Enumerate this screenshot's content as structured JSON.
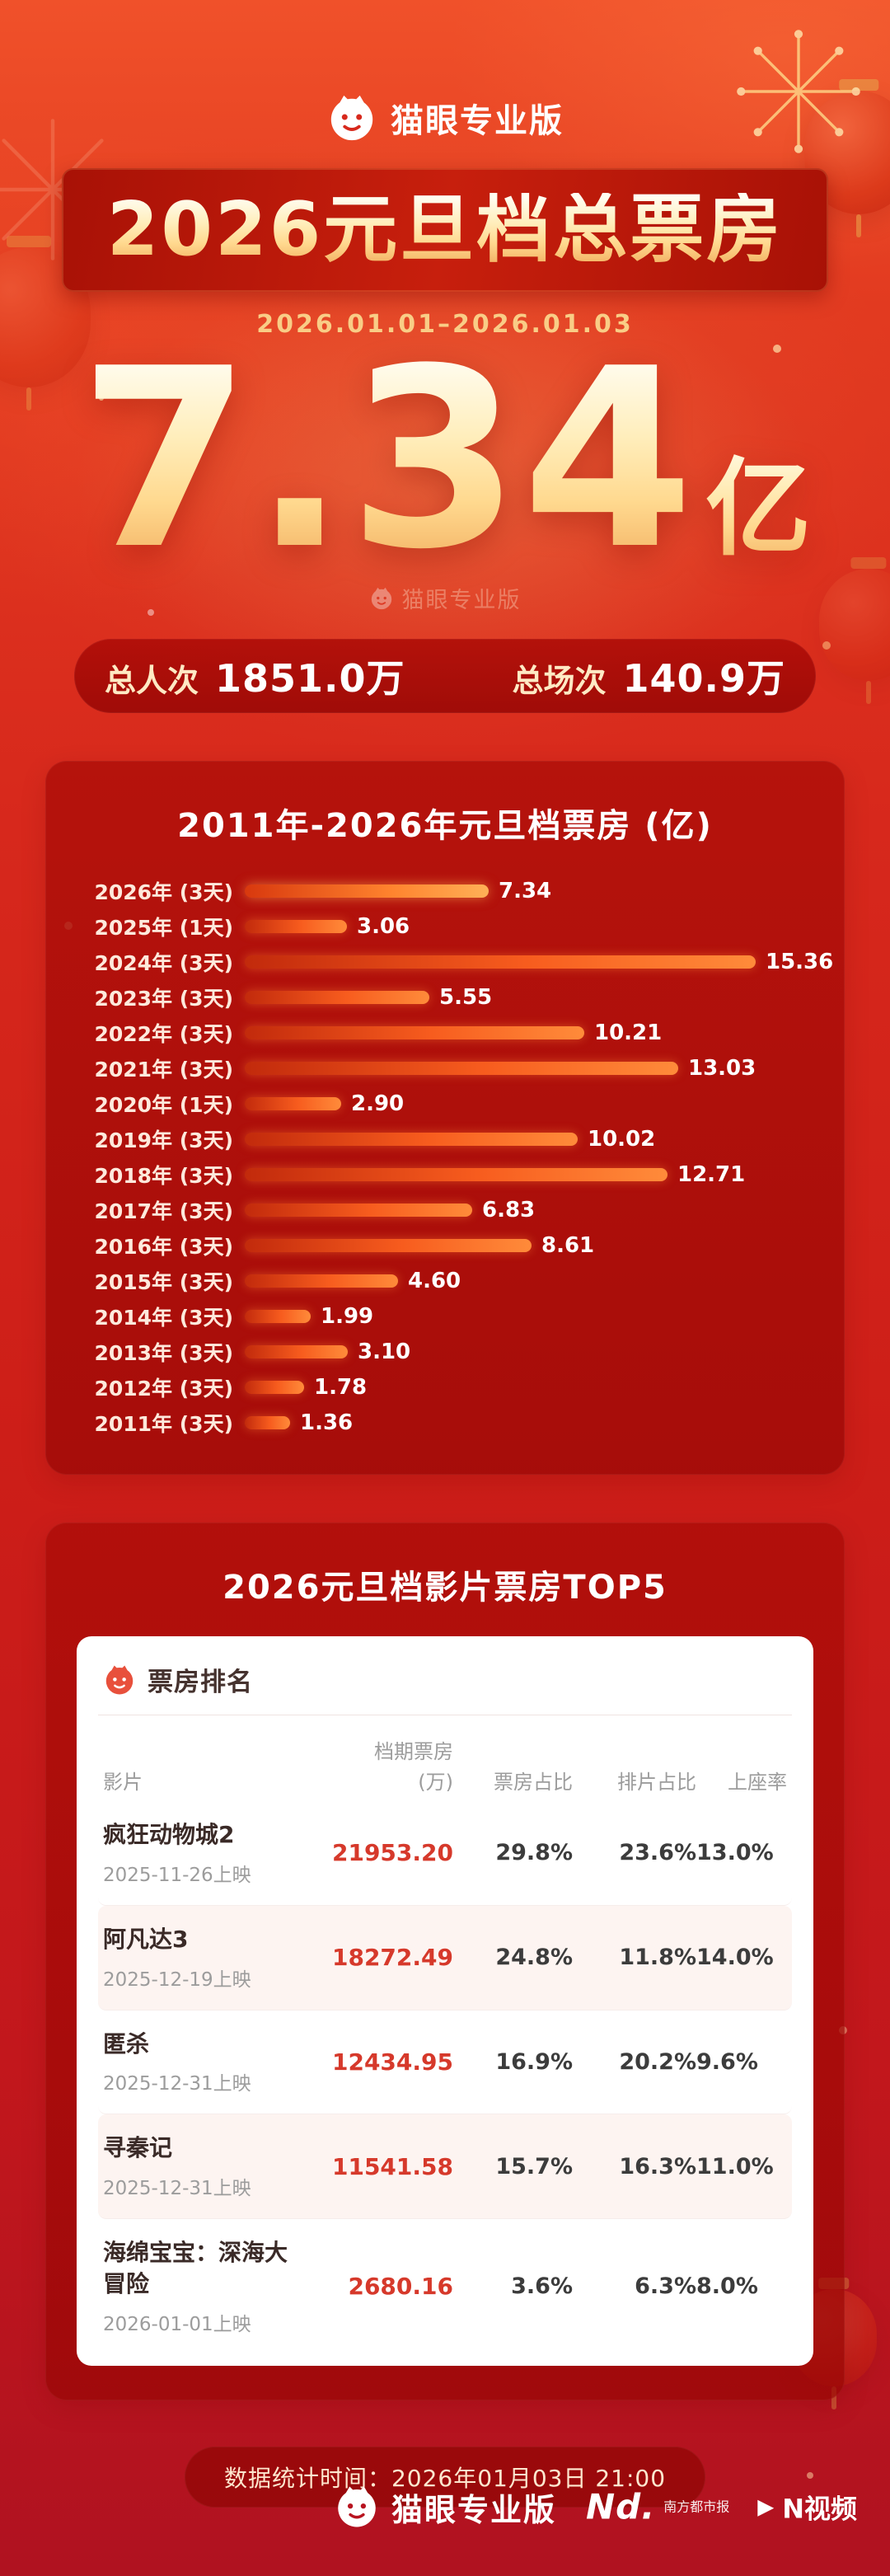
{
  "brand": {
    "name": "猫眼专业版"
  },
  "hero": {
    "title": "2026元旦档总票房",
    "date_range": "2026.01.01–2026.01.03",
    "total": "7.34",
    "unit": "亿",
    "watermark": "猫眼专业版",
    "stats": [
      {
        "label": "总人次",
        "value": "1851.0万"
      },
      {
        "label": "总场次",
        "value": "140.9万"
      }
    ]
  },
  "chart_data": [
    {
      "type": "bar",
      "orientation": "horizontal",
      "title": "2011年-2026年元旦档票房 (亿)",
      "categories": [
        "2026年 (3天)",
        "2025年 (1天)",
        "2024年 (3天)",
        "2023年 (3天)",
        "2022年 (3天)",
        "2021年 (3天)",
        "2020年 (1天)",
        "2019年 (3天)",
        "2018年 (3天)",
        "2017年 (3天)",
        "2016年 (3天)",
        "2015年 (3天)",
        "2014年 (3天)",
        "2013年 (3天)",
        "2012年 (3天)",
        "2011年 (3天)"
      ],
      "values": [
        7.34,
        3.06,
        15.36,
        5.55,
        10.21,
        13.03,
        2.9,
        10.02,
        12.71,
        6.83,
        8.61,
        4.6,
        1.99,
        3.1,
        1.78,
        1.36
      ],
      "xlim": [
        0,
        15.36
      ],
      "value_labels": true,
      "bar_color": "#ff7a33",
      "highlight_first": true,
      "grid": false,
      "legend": "none"
    },
    {
      "type": "table",
      "title": "2026元旦档影片票房TOP5",
      "corner_label": "票房排名",
      "columns": [
        {
          "label": "影片"
        },
        {
          "label": "档期票房",
          "sub": "(万)"
        },
        {
          "label": "票房占比"
        },
        {
          "label": "排片占比"
        },
        {
          "label": "上座率"
        }
      ],
      "rows": [
        {
          "film": "疯狂动物城2",
          "release": "2025-11-26上映",
          "gross": "21953.20",
          "box_share": "29.8%",
          "schedule_share": "23.6%",
          "occupancy": "13.0%"
        },
        {
          "film": "阿凡达3",
          "release": "2025-12-19上映",
          "gross": "18272.49",
          "box_share": "24.8%",
          "schedule_share": "11.8%",
          "occupancy": "14.0%"
        },
        {
          "film": "匿杀",
          "release": "2025-12-31上映",
          "gross": "12434.95",
          "box_share": "16.9%",
          "schedule_share": "20.2%",
          "occupancy": "9.6%"
        },
        {
          "film": "寻秦记",
          "release": "2025-12-31上映",
          "gross": "11541.58",
          "box_share": "15.7%",
          "schedule_share": "16.3%",
          "occupancy": "11.0%"
        },
        {
          "film": "海绵宝宝：深海大冒险",
          "release": "2026-01-01上映",
          "gross": "2680.16",
          "box_share": "3.6%",
          "schedule_share": "6.3%",
          "occupancy": "8.0%"
        }
      ]
    }
  ],
  "footer": {
    "note": "数据统计时间：2026年01月03日 21:00"
  },
  "bottom": {
    "brand": "猫眼专业版",
    "partners": [
      {
        "name": "Nd.",
        "sub": "南方都市报"
      },
      {
        "name": "N视频"
      }
    ]
  },
  "colors": {
    "background_red": "#d7281c",
    "accent_gold": "#ffd98f",
    "bar_orange": "#ff7a33",
    "gross_red": "#d6392b"
  }
}
